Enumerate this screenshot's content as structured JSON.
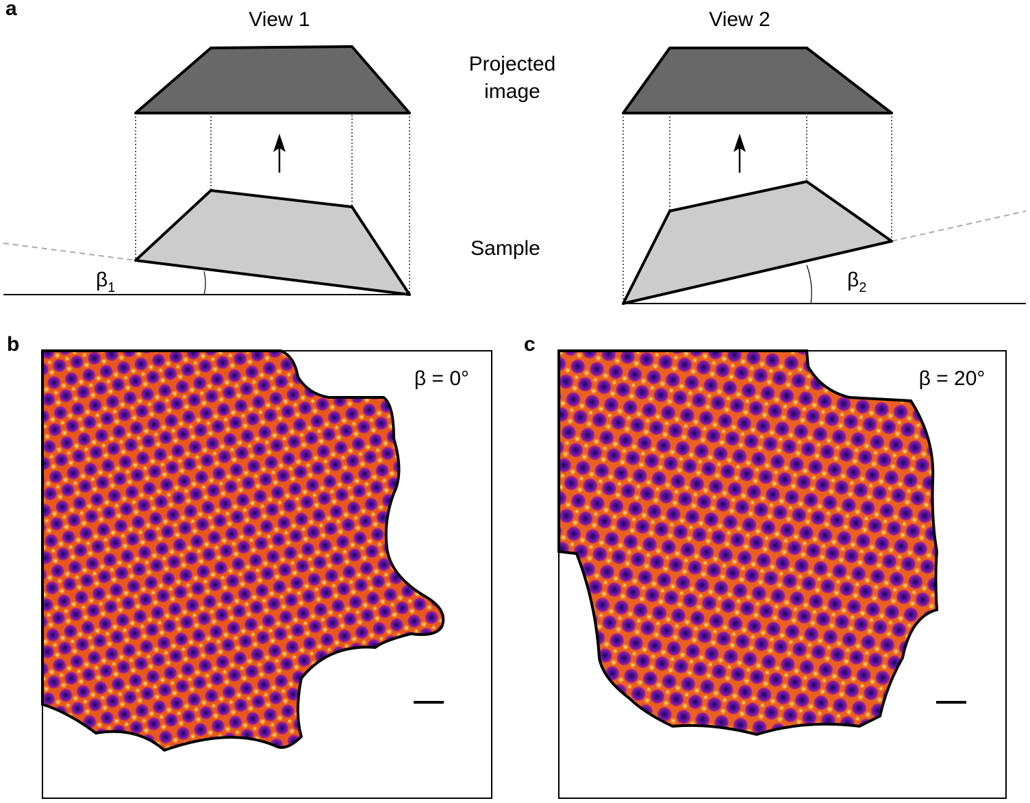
{
  "panel_a": {
    "label": "a",
    "view_1": {
      "title": "View 1",
      "angle": {
        "symbol": "β",
        "subscript": "1"
      }
    },
    "view_2": {
      "title": "View 2",
      "angle": {
        "symbol": "β",
        "subscript": "2"
      }
    },
    "projected_label": [
      "Projected",
      "image"
    ],
    "sample_label": "Sample"
  },
  "panel_b": {
    "label": "b",
    "tilt": "β = 0°"
  },
  "panel_c": {
    "label": "c",
    "tilt": "β = 20°"
  }
}
